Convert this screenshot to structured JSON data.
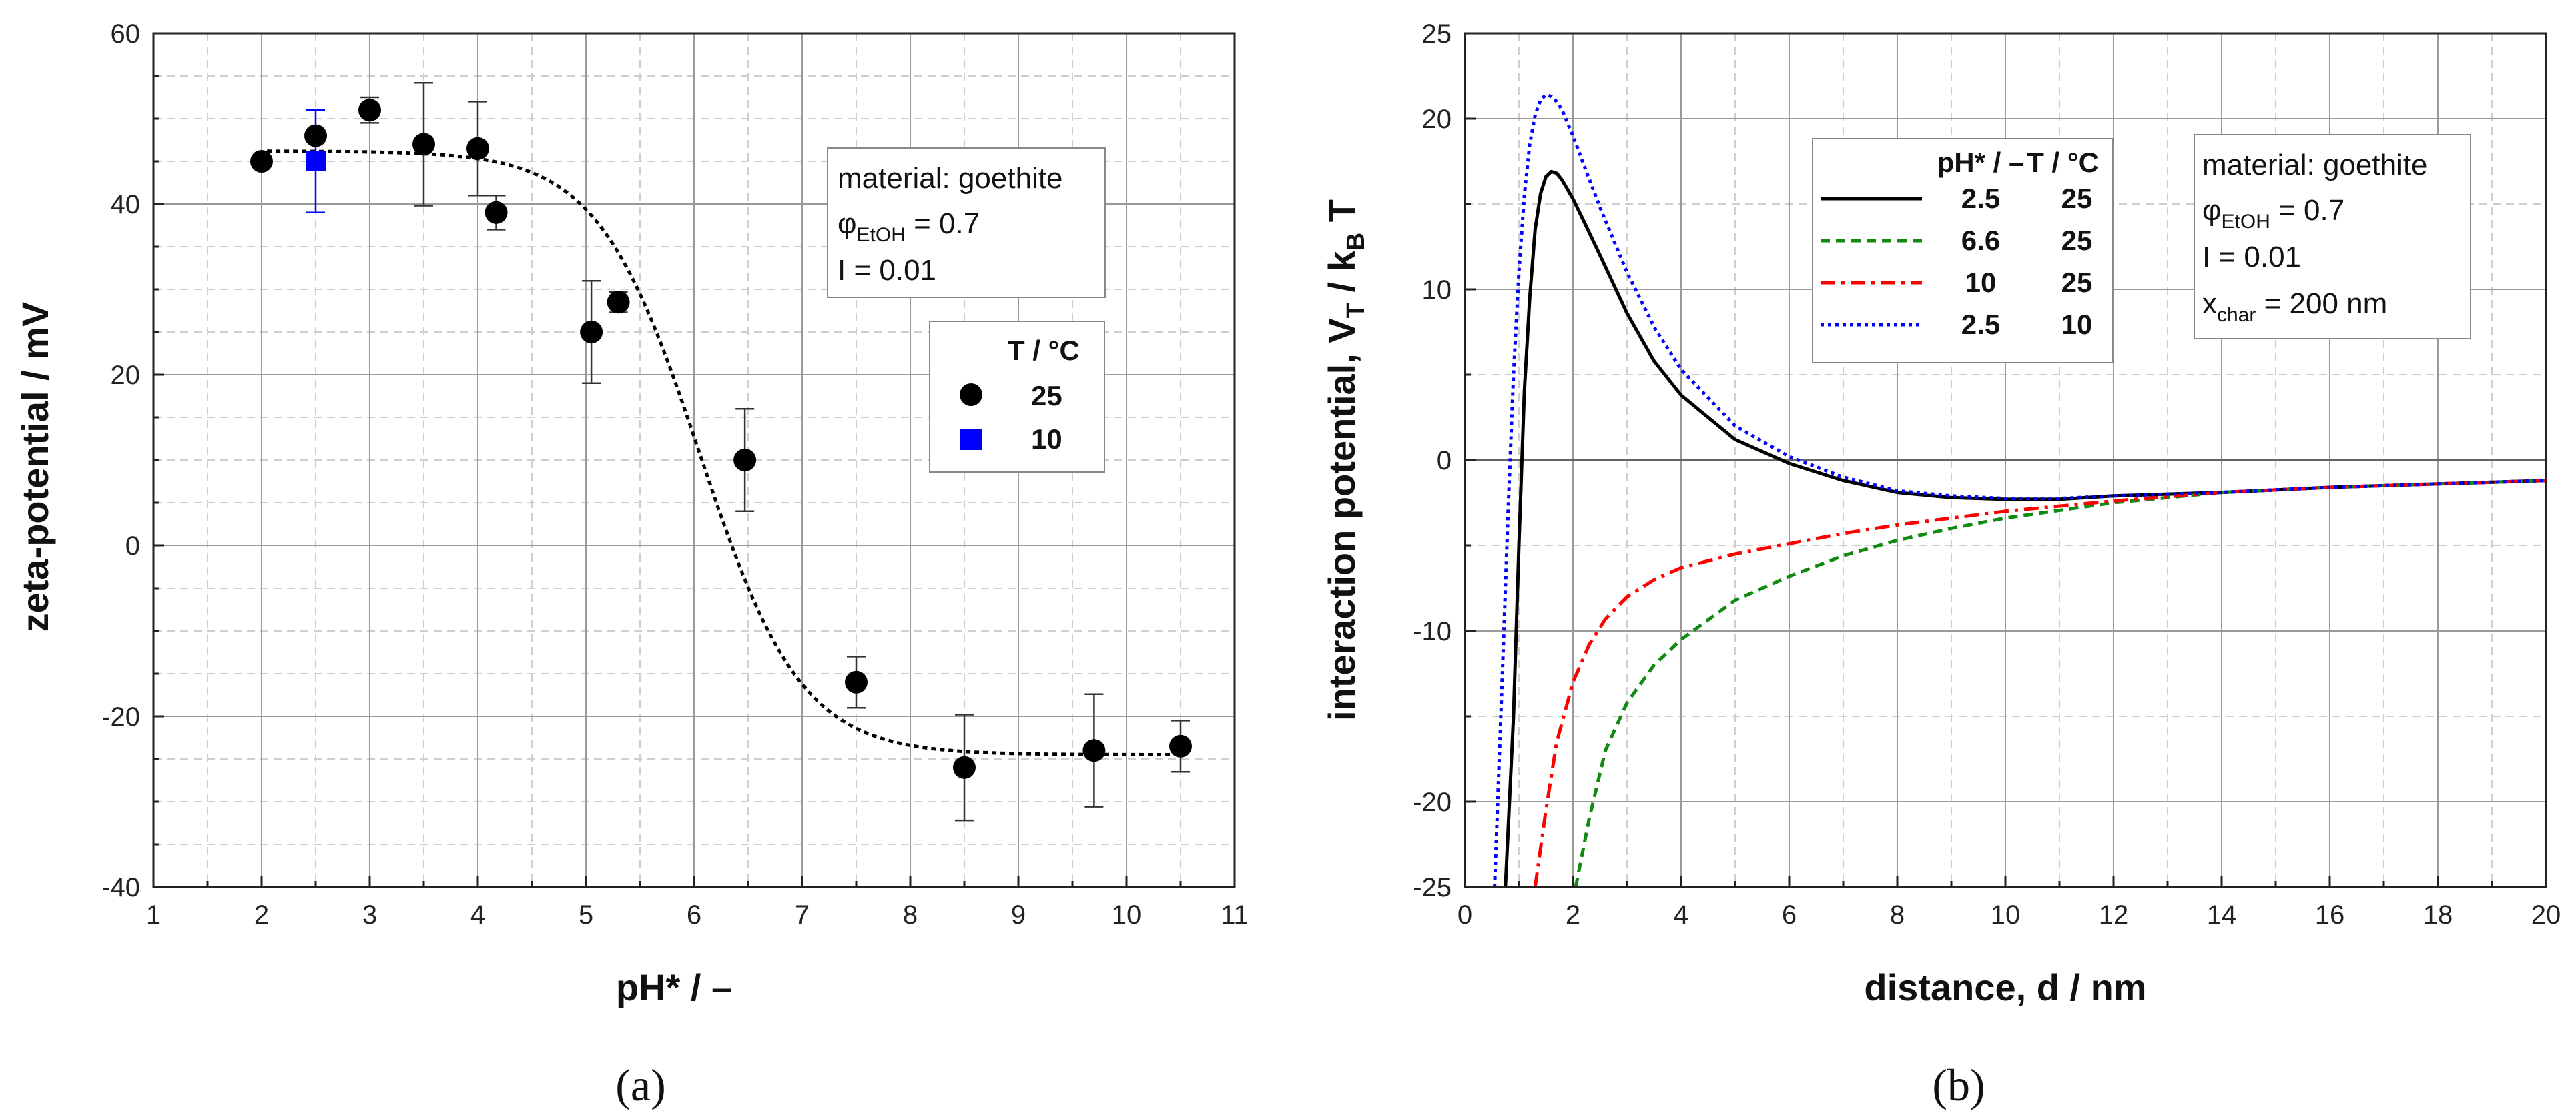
{
  "chart_data": [
    {
      "panel_label": "(a)",
      "type": "scatter",
      "xlabel": "pH* / –",
      "ylabel": "zeta-potential / mV",
      "xlim": [
        1,
        11
      ],
      "ylim": [
        -40,
        60
      ],
      "x_ticks": [
        "1",
        "2",
        "3",
        "4",
        "5",
        "6",
        "7",
        "8",
        "9",
        "10",
        "11"
      ],
      "y_ticks": [
        "-40",
        "-20",
        "0",
        "20",
        "40",
        "60"
      ],
      "grid": true,
      "info_box": {
        "material": "material: goethite",
        "phi_symbol": "φ",
        "phi_sub": "EtOH",
        "phi_value": " = 0.7",
        "ionic": "I = 0.01"
      },
      "legend": {
        "header": "T / °C",
        "entries": [
          {
            "label": "25",
            "marker": "circle",
            "color": "#000000"
          },
          {
            "label": "10",
            "marker": "square",
            "color": "#0000ff"
          }
        ]
      },
      "series": [
        {
          "name": "25",
          "marker": "circle",
          "color": "#000000",
          "points": [
            {
              "x": 2.0,
              "y": 45,
              "err": 0
            },
            {
              "x": 2.5,
              "y": 48,
              "err": 0
            },
            {
              "x": 3.0,
              "y": 51,
              "err": 1.5
            },
            {
              "x": 3.5,
              "y": 47,
              "err": 7.2
            },
            {
              "x": 4.0,
              "y": 46.5,
              "err": 5.5
            },
            {
              "x": 4.17,
              "y": 39,
              "err": 2.0
            },
            {
              "x": 5.05,
              "y": 25,
              "err": 6.0
            },
            {
              "x": 5.3,
              "y": 28.5,
              "err": 1.2
            },
            {
              "x": 6.47,
              "y": 10,
              "err": 6.0
            },
            {
              "x": 7.5,
              "y": -16,
              "err": 3.0
            },
            {
              "x": 8.5,
              "y": -26,
              "err": 6.2
            },
            {
              "x": 9.7,
              "y": -24,
              "err": 6.6
            },
            {
              "x": 10.5,
              "y": -23.5,
              "err": 3.0
            }
          ]
        },
        {
          "name": "10",
          "marker": "square",
          "color": "#0000ff",
          "points": [
            {
              "x": 2.5,
              "y": 45,
              "err": 6.0
            }
          ]
        }
      ],
      "fit_curve": {
        "style": "dotted",
        "color": "#000000",
        "model": "sigmoid",
        "upper": 46.2,
        "lower": -24.5,
        "midpoint": 6.05,
        "slope": 0.47,
        "x_range": [
          2.05,
          10.55
        ]
      }
    },
    {
      "panel_label": "(b)",
      "type": "line",
      "xlabel": "distance, d / nm",
      "ylabel_main": "interaction potential, V",
      "ylabel_sub1": "T",
      "ylabel_mid": " / k",
      "ylabel_sub2": "B",
      "ylabel_end": " T",
      "xlim": [
        0,
        20
      ],
      "ylim": [
        -25,
        25
      ],
      "x_ticks": [
        "0",
        "2",
        "4",
        "6",
        "8",
        "10",
        "12",
        "14",
        "16",
        "18",
        "20"
      ],
      "y_ticks": [
        "-25",
        "-20",
        "-10",
        "0",
        "10",
        "20",
        "25"
      ],
      "grid": true,
      "info_box": {
        "material": "material: goethite",
        "phi_symbol": "φ",
        "phi_sub": "EtOH",
        "phi_value": " = 0.7",
        "ionic": "I = 0.01",
        "xchar_main": "x",
        "xchar_sub": "char",
        "xchar_value": " = 200 nm"
      },
      "legend": {
        "header_ph": "pH* / –",
        "header_t": "T / °C",
        "entries": [
          {
            "ph": "2.5",
            "t": "25",
            "color": "#000000",
            "style": "solid"
          },
          {
            "ph": "6.6",
            "t": "25",
            "color": "#118a11",
            "style": "dash"
          },
          {
            "ph": "10",
            "t": "25",
            "color": "#ff0000",
            "style": "dashdot"
          },
          {
            "ph": "2.5",
            "t": "10",
            "color": "#0000ff",
            "style": "dot"
          }
        ]
      },
      "series": [
        {
          "name": "pH 2.5, 25 °C",
          "color": "#000000",
          "style": "solid",
          "x": [
            0.75,
            0.9,
            1.0,
            1.1,
            1.2,
            1.3,
            1.4,
            1.5,
            1.6,
            1.7,
            1.8,
            2.0,
            2.2,
            2.5,
            3.0,
            3.5,
            4.0,
            5.0,
            6.0,
            7.0,
            8.0,
            9.0,
            10.0,
            11.0,
            12.0,
            14.0,
            16.0,
            18.0,
            20.0
          ],
          "y": [
            -25,
            -15,
            -5,
            4.0,
            9.5,
            13.5,
            15.6,
            16.6,
            16.9,
            16.8,
            16.4,
            15.3,
            14.0,
            12.0,
            8.6,
            5.8,
            3.8,
            1.2,
            -0.2,
            -1.2,
            -1.9,
            -2.2,
            -2.3,
            -2.3,
            -2.1,
            -1.9,
            -1.6,
            -1.4,
            -1.2
          ]
        },
        {
          "name": "pH 6.6, 25 °C",
          "color": "#118a11",
          "style": "dash",
          "x": [
            2.05,
            2.3,
            2.6,
            3.0,
            3.5,
            4.0,
            5.0,
            6.0,
            7.0,
            8.0,
            9.0,
            10.0,
            12.0,
            14.0,
            16.0,
            18.0,
            20.0
          ],
          "y": [
            -25,
            -21,
            -17,
            -14.2,
            -12,
            -10.5,
            -8.2,
            -6.8,
            -5.6,
            -4.7,
            -4.0,
            -3.4,
            -2.5,
            -1.9,
            -1.6,
            -1.4,
            -1.2
          ]
        },
        {
          "name": "pH 10, 25 °C",
          "color": "#ff0000",
          "style": "dashdot",
          "x": [
            1.3,
            1.5,
            1.7,
            2.0,
            2.3,
            2.6,
            3.0,
            3.5,
            4.0,
            5.0,
            6.0,
            7.0,
            8.0,
            9.0,
            10.0,
            12.0,
            14.0,
            16.0,
            18.0,
            20.0
          ],
          "y": [
            -25,
            -20.5,
            -16.5,
            -13,
            -10.8,
            -9.3,
            -8.0,
            -7.0,
            -6.3,
            -5.5,
            -4.9,
            -4.3,
            -3.8,
            -3.4,
            -3.0,
            -2.4,
            -1.9,
            -1.6,
            -1.4,
            -1.2
          ]
        },
        {
          "name": "pH 2.5, 10 °C",
          "color": "#0000ff",
          "style": "dot",
          "x": [
            0.55,
            0.7,
            0.8,
            0.9,
            1.0,
            1.1,
            1.2,
            1.3,
            1.4,
            1.5,
            1.6,
            1.7,
            1.8,
            2.0,
            2.2,
            2.5,
            3.0,
            3.5,
            4.0,
            5.0,
            6.0,
            7.0,
            8.0,
            9.0,
            10.0,
            11.0,
            12.0,
            14.0,
            16.0,
            18.0,
            20.0
          ],
          "y": [
            -25,
            -12,
            -3,
            5,
            11,
            15.5,
            18.5,
            20.2,
            21.1,
            21.4,
            21.3,
            21.0,
            20.5,
            19.0,
            17.3,
            14.8,
            11.0,
            7.8,
            5.3,
            2.0,
            0.2,
            -1.0,
            -1.8,
            -2.1,
            -2.25,
            -2.25,
            -2.1,
            -1.9,
            -1.6,
            -1.4,
            -1.2
          ]
        }
      ],
      "reference_line": {
        "y": 0,
        "color": "#666666"
      }
    }
  ]
}
